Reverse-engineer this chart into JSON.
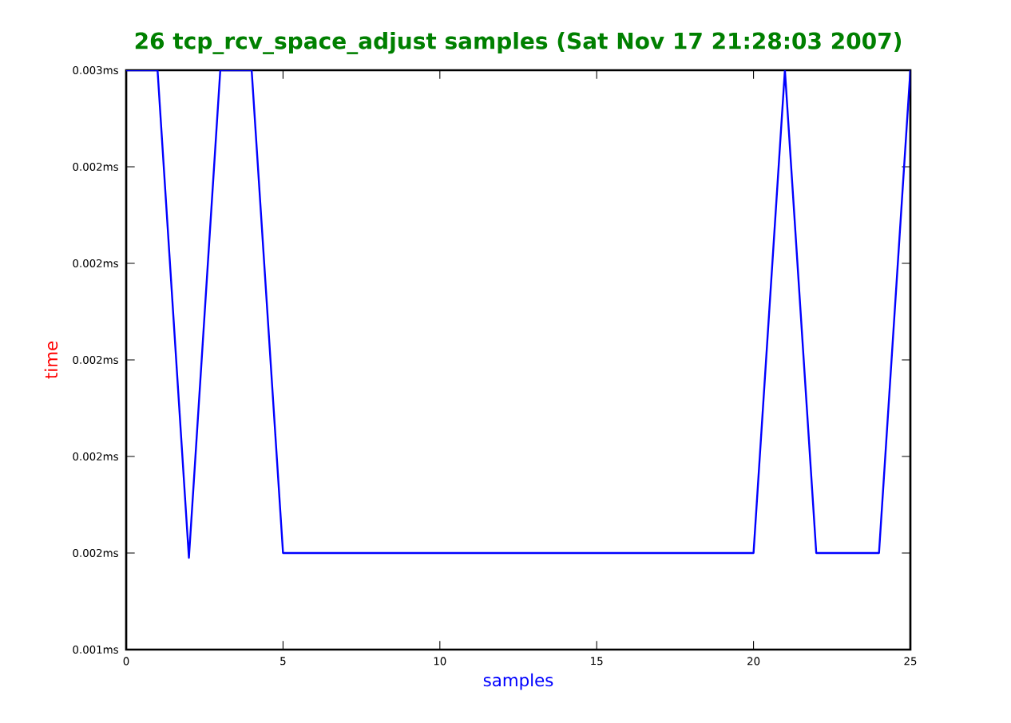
{
  "chart_data": {
    "type": "line",
    "title": "26 tcp_rcv_space_adjust samples (Sat Nov 17 21:28:03 2007)",
    "xlabel": "samples",
    "ylabel": "time",
    "x": [
      0,
      1,
      2,
      3,
      4,
      5,
      6,
      7,
      8,
      9,
      10,
      11,
      12,
      13,
      14,
      15,
      16,
      17,
      18,
      19,
      20,
      21,
      22,
      23,
      24,
      25
    ],
    "series": [
      {
        "color": "#0000ff",
        "values": [
          0.0026,
          0.0026,
          0.00159,
          0.0026,
          0.0026,
          0.0016,
          0.0016,
          0.0016,
          0.0016,
          0.0016,
          0.0016,
          0.0016,
          0.0016,
          0.0016,
          0.0016,
          0.0016,
          0.0016,
          0.0016,
          0.0016,
          0.0016,
          0.0016,
          0.0026,
          0.0016,
          0.0016,
          0.0016,
          0.0026
        ]
      }
    ],
    "xlim": [
      0,
      25
    ],
    "xticks": [
      0,
      5,
      10,
      15,
      20,
      25
    ],
    "ylim": [
      0.0014,
      0.0026
    ],
    "yticks": [
      {
        "value": 0.0014,
        "label": "0.001ms"
      },
      {
        "value": 0.0016,
        "label": "0.002ms"
      },
      {
        "value": 0.0018,
        "label": "0.002ms"
      },
      {
        "value": 0.002,
        "label": "0.002ms"
      },
      {
        "value": 0.0022,
        "label": "0.002ms"
      },
      {
        "value": 0.0024,
        "label": "0.002ms"
      },
      {
        "value": 0.0026,
        "label": "0.003ms"
      }
    ],
    "grid": false,
    "marker": "none",
    "line_style": "solid"
  }
}
